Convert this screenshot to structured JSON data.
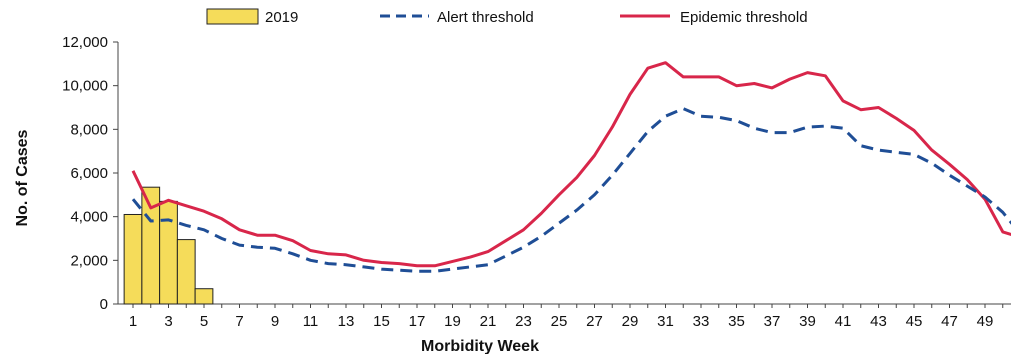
{
  "chart_data": {
    "type": "bar+line",
    "title": "",
    "xlabel": "Morbidity Week",
    "ylabel": "No. of Cases",
    "ylim": [
      0,
      12000
    ],
    "y_ticks": [
      0,
      2000,
      4000,
      6000,
      8000,
      10000,
      12000
    ],
    "y_tick_labels": [
      "0",
      "2,000",
      "4,000",
      "6,000",
      "8,000",
      "10,000",
      "12,000"
    ],
    "x_range": [
      1,
      52
    ],
    "x_ticks": [
      1,
      3,
      5,
      7,
      9,
      11,
      13,
      15,
      17,
      19,
      21,
      23,
      25,
      27,
      29,
      31,
      33,
      35,
      37,
      39,
      41,
      43,
      45,
      47,
      49,
      51
    ],
    "grid": false,
    "legend_position": "top",
    "legend": [
      {
        "name": "2019",
        "kind": "bar",
        "color": "#f5dc5a",
        "stroke": "#222222"
      },
      {
        "name": "Alert threshold",
        "kind": "dashed-line",
        "color": "#1f4e96"
      },
      {
        "name": "Epidemic threshold",
        "kind": "line",
        "color": "#d8264a"
      }
    ],
    "series": [
      {
        "name": "2019",
        "type": "bar",
        "x": [
          1,
          2,
          3,
          4,
          5
        ],
        "values": [
          4100,
          5350,
          4700,
          2950,
          700
        ]
      },
      {
        "name": "Alert threshold",
        "type": "line",
        "x": [
          1,
          2,
          3,
          4,
          5,
          6,
          7,
          8,
          9,
          10,
          11,
          12,
          13,
          14,
          15,
          16,
          17,
          18,
          19,
          20,
          21,
          22,
          23,
          24,
          25,
          26,
          27,
          28,
          29,
          30,
          31,
          32,
          33,
          34,
          35,
          36,
          37,
          38,
          39,
          40,
          41,
          42,
          43,
          44,
          45,
          46,
          47,
          48,
          49,
          50,
          51,
          52
        ],
        "values": [
          4800,
          3800,
          3850,
          3600,
          3400,
          3000,
          2700,
          2600,
          2550,
          2300,
          2000,
          1850,
          1800,
          1700,
          1600,
          1550,
          1500,
          1500,
          1600,
          1700,
          1800,
          2200,
          2600,
          3100,
          3700,
          4300,
          5000,
          5900,
          6900,
          7900,
          8600,
          8950,
          8600,
          8550,
          8400,
          8050,
          7850,
          7850,
          8100,
          8150,
          8050,
          7250,
          7050,
          6950,
          6850,
          6450,
          5900,
          5400,
          4900,
          4200,
          3200,
          2400
        ]
      },
      {
        "name": "Epidemic threshold",
        "type": "line",
        "x": [
          1,
          2,
          3,
          4,
          5,
          6,
          7,
          8,
          9,
          10,
          11,
          12,
          13,
          14,
          15,
          16,
          17,
          18,
          19,
          20,
          21,
          22,
          23,
          24,
          25,
          26,
          27,
          28,
          29,
          30,
          31,
          32,
          33,
          34,
          35,
          36,
          37,
          38,
          39,
          40,
          41,
          42,
          43,
          44,
          45,
          46,
          47,
          48,
          49,
          50,
          51,
          52
        ],
        "values": [
          6100,
          4400,
          4750,
          4500,
          4250,
          3900,
          3400,
          3150,
          3150,
          2900,
          2450,
          2300,
          2250,
          2000,
          1900,
          1850,
          1750,
          1750,
          1950,
          2150,
          2400,
          2900,
          3400,
          4150,
          5000,
          5800,
          6800,
          8100,
          9600,
          10800,
          11050,
          10400,
          10400,
          10400,
          10000,
          10100,
          9900,
          10300,
          10600,
          10450,
          9300,
          8900,
          9000,
          8500,
          7950,
          7050,
          6400,
          5700,
          4800,
          3300,
          3050,
          2950
        ]
      }
    ]
  }
}
